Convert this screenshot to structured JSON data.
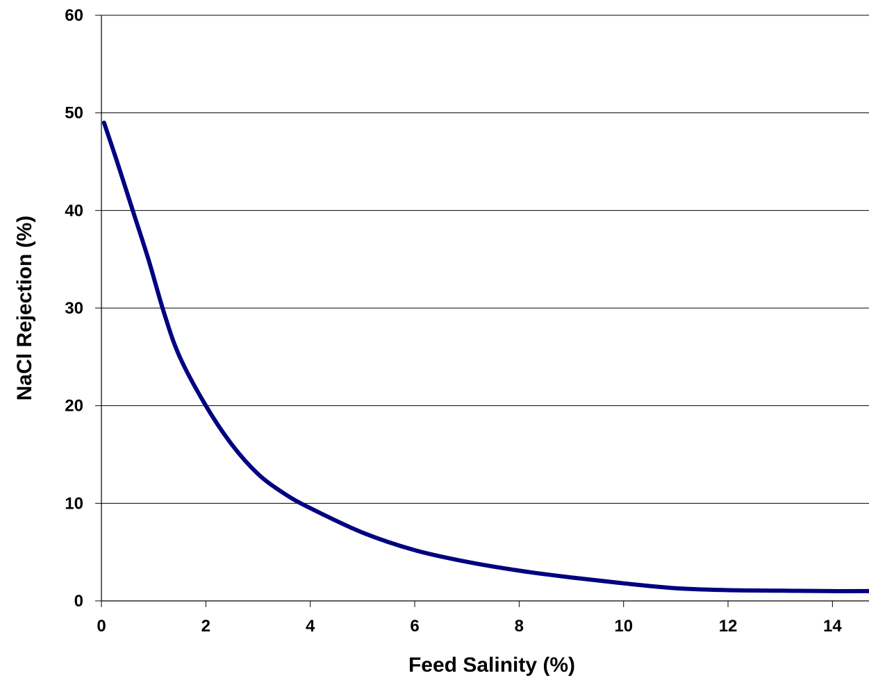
{
  "chart_data": {
    "type": "line",
    "title": "",
    "xlabel": "Feed Salinity (%)",
    "ylabel": "NaCl Rejection (%)",
    "xlim": [
      0,
      14.7
    ],
    "ylim": [
      0,
      60
    ],
    "xticks": [
      0,
      2,
      4,
      6,
      8,
      10,
      12,
      14
    ],
    "yticks": [
      0,
      10,
      20,
      30,
      40,
      50,
      60
    ],
    "grid": {
      "horizontal": true,
      "vertical": false
    },
    "legend": "none",
    "series": [
      {
        "color": "#000080",
        "x": [
          0.05,
          0.3,
          0.6,
          0.9,
          1.2,
          1.5,
          2.0,
          2.5,
          3.0,
          3.5,
          4.0,
          5.0,
          6.0,
          7.0,
          8.0,
          9.0,
          10.0,
          11.0,
          12.0,
          13.0,
          14.0,
          14.7
        ],
        "y": [
          49,
          45,
          40,
          35,
          29.5,
          25,
          20,
          16,
          13,
          11,
          9.5,
          7,
          5.2,
          4,
          3.1,
          2.4,
          1.8,
          1.3,
          1.1,
          1.05,
          1.0,
          1.0
        ]
      }
    ]
  }
}
